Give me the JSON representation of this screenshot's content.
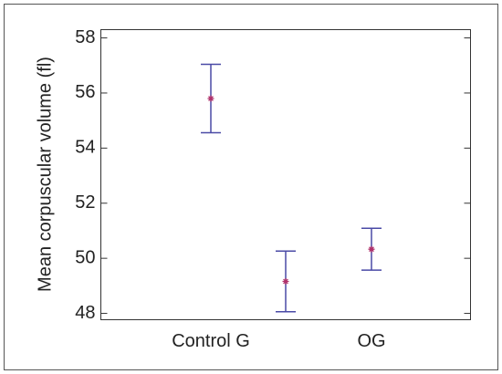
{
  "chart_data": {
    "type": "errorbar",
    "ylabel": "Mean corpuscular volume (fl)",
    "categories": [
      "Control G",
      null,
      "OG"
    ],
    "values": [
      55.8,
      49.16,
      50.33
    ],
    "errors": [
      1.24,
      1.1,
      0.76
    ],
    "color": "#4a4aa6",
    "marker_color": "#b0306a",
    "ylim": [
      47.77,
      58.3
    ],
    "yticks": [
      48,
      50,
      52,
      54,
      56,
      58
    ]
  }
}
